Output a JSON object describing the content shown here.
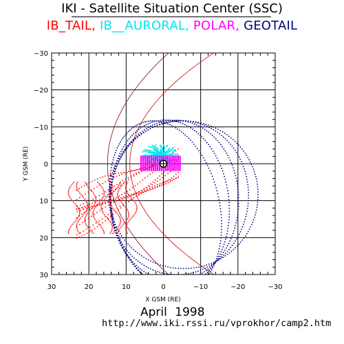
{
  "header": {
    "title": "IKI - Satellite Situation Center (SSC)",
    "satellites": [
      {
        "name": "IB_TAIL",
        "color": "#ff0000"
      },
      {
        "name": "IB__AURORAL",
        "color": "#00e5ee"
      },
      {
        "name": "POLAR",
        "color": "#ff00ff"
      },
      {
        "name": "GEOTAIL",
        "color": "#000080"
      }
    ],
    "separator": ", "
  },
  "chart_data": {
    "type": "scatter",
    "xlabel": "X GSM (RE)",
    "ylabel": "Y GSM (RE)",
    "xlim": [
      30,
      -30
    ],
    "ylim": [
      -30,
      30
    ],
    "x_ticks": [
      30,
      20,
      10,
      0,
      -10,
      -20,
      -30
    ],
    "y_ticks": [
      -30,
      -20,
      -10,
      0,
      10,
      20,
      30
    ],
    "x_tick_labels": [
      "30",
      "20",
      "10",
      "0",
      "−10",
      "−20",
      "−30"
    ],
    "y_tick_labels": [
      "−30",
      "−20",
      "−10",
      "0",
      "10",
      "20",
      "30"
    ],
    "grid": true,
    "earth_label": "⊕",
    "series": [
      {
        "name": "GEOTAIL",
        "color": "#000080",
        "kind": "orbit",
        "center": [
          -3,
          10
        ],
        "rx": 20,
        "ry": 20,
        "loops": 5
      },
      {
        "name": "IB_TAIL",
        "color": "#ff0000",
        "kind": "cloud",
        "x_range": [
          -4,
          25
        ],
        "y_range": [
          -6,
          20
        ]
      },
      {
        "name": "IB__AURORAL",
        "color": "#00e5ee",
        "kind": "cluster",
        "center": [
          1,
          -2
        ]
      },
      {
        "name": "POLAR",
        "color": "#ff00ff",
        "kind": "cluster",
        "center": [
          2,
          0
        ]
      }
    ],
    "boundaries": [
      {
        "name": "magnetopause",
        "color": "#cc0000"
      },
      {
        "name": "bow-shock",
        "color": "#800020"
      }
    ]
  },
  "footer": {
    "date": "April 1998",
    "url": "http://www.iki.rssi.ru/vprokhor/camp2.htm"
  }
}
